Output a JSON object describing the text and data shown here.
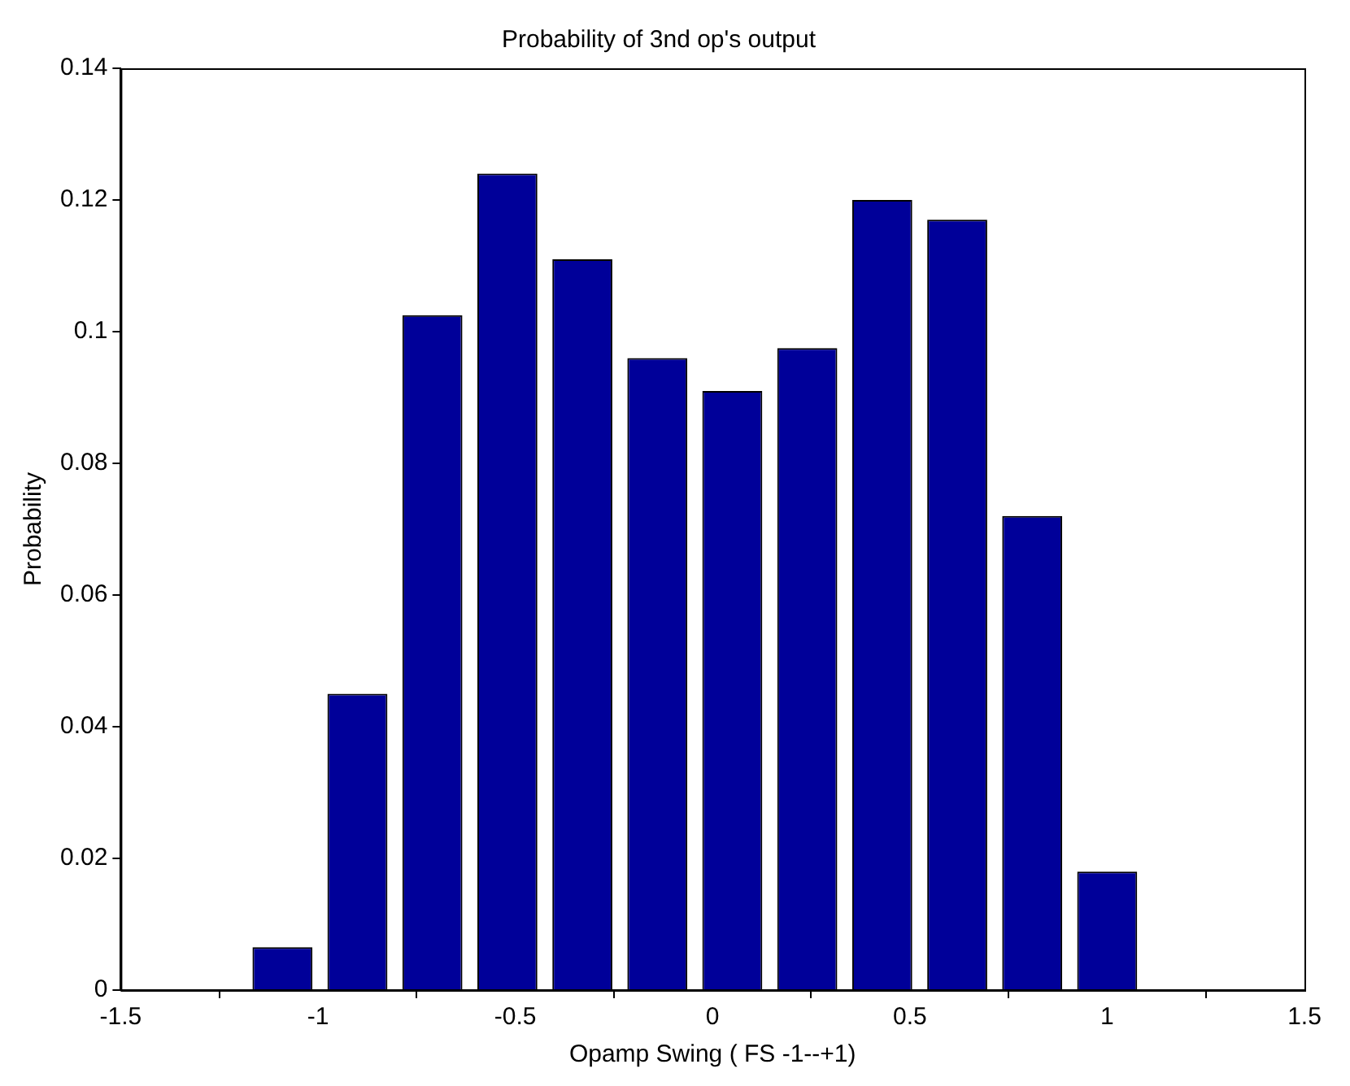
{
  "chart_data": {
    "type": "bar",
    "title": "Probability of 3nd op's output",
    "xlabel": "Opamp Swing ( FS -1--+1)",
    "ylabel": "Probability",
    "x": [
      -1.09,
      -0.9,
      -0.71,
      -0.52,
      -0.33,
      -0.14,
      0.05,
      0.24,
      0.43,
      0.62,
      0.81,
      1.0
    ],
    "values": [
      0.0065,
      0.045,
      0.1025,
      0.124,
      0.111,
      0.096,
      0.091,
      0.0975,
      0.12,
      0.117,
      0.072,
      0.018
    ],
    "color": "#000099",
    "xlim": [
      -1.5,
      1.5
    ],
    "xticks": [
      -1.5,
      -1,
      -0.5,
      0,
      0.5,
      1,
      1.5
    ],
    "ylim": [
      0,
      0.14
    ],
    "yticks": [
      0,
      0.02,
      0.04,
      0.06,
      0.08,
      0.1,
      0.12,
      0.14
    ]
  }
}
